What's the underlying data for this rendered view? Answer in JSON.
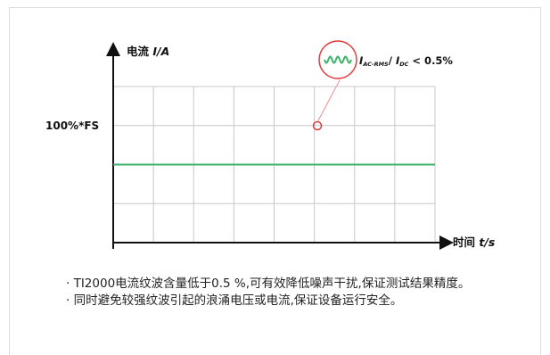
{
  "chart_data": {
    "type": "line",
    "ylabel_text": "电流 ",
    "ylabel_var": "I/A",
    "xlabel_text": "时间 ",
    "xlabel_var": "t/s",
    "level_label": "100%*FS",
    "level_color": "#3db36b",
    "ripple_color": "#3db36b",
    "marker_color": "#e23c3c",
    "grid": true,
    "grid_color": "#c8c8c8",
    "series": [
      {
        "values": [
          100,
          100,
          100,
          100,
          100,
          100,
          100,
          100,
          100
        ]
      }
    ],
    "annotation": {
      "numerator_base": "I",
      "numerator_sub": "AC-RMS",
      "slash": "/ ",
      "denominator_base": "I",
      "denominator_sub": "DC",
      "relation": "< 0.5%"
    }
  },
  "notes": [
    "· TI2000电流纹波含量低于0.5 %,可有效降低噪声干扰,保证测试结果精度。",
    "· 同时避免较强纹波引起的浪涌电压或电流,保证设备运行安全。"
  ]
}
